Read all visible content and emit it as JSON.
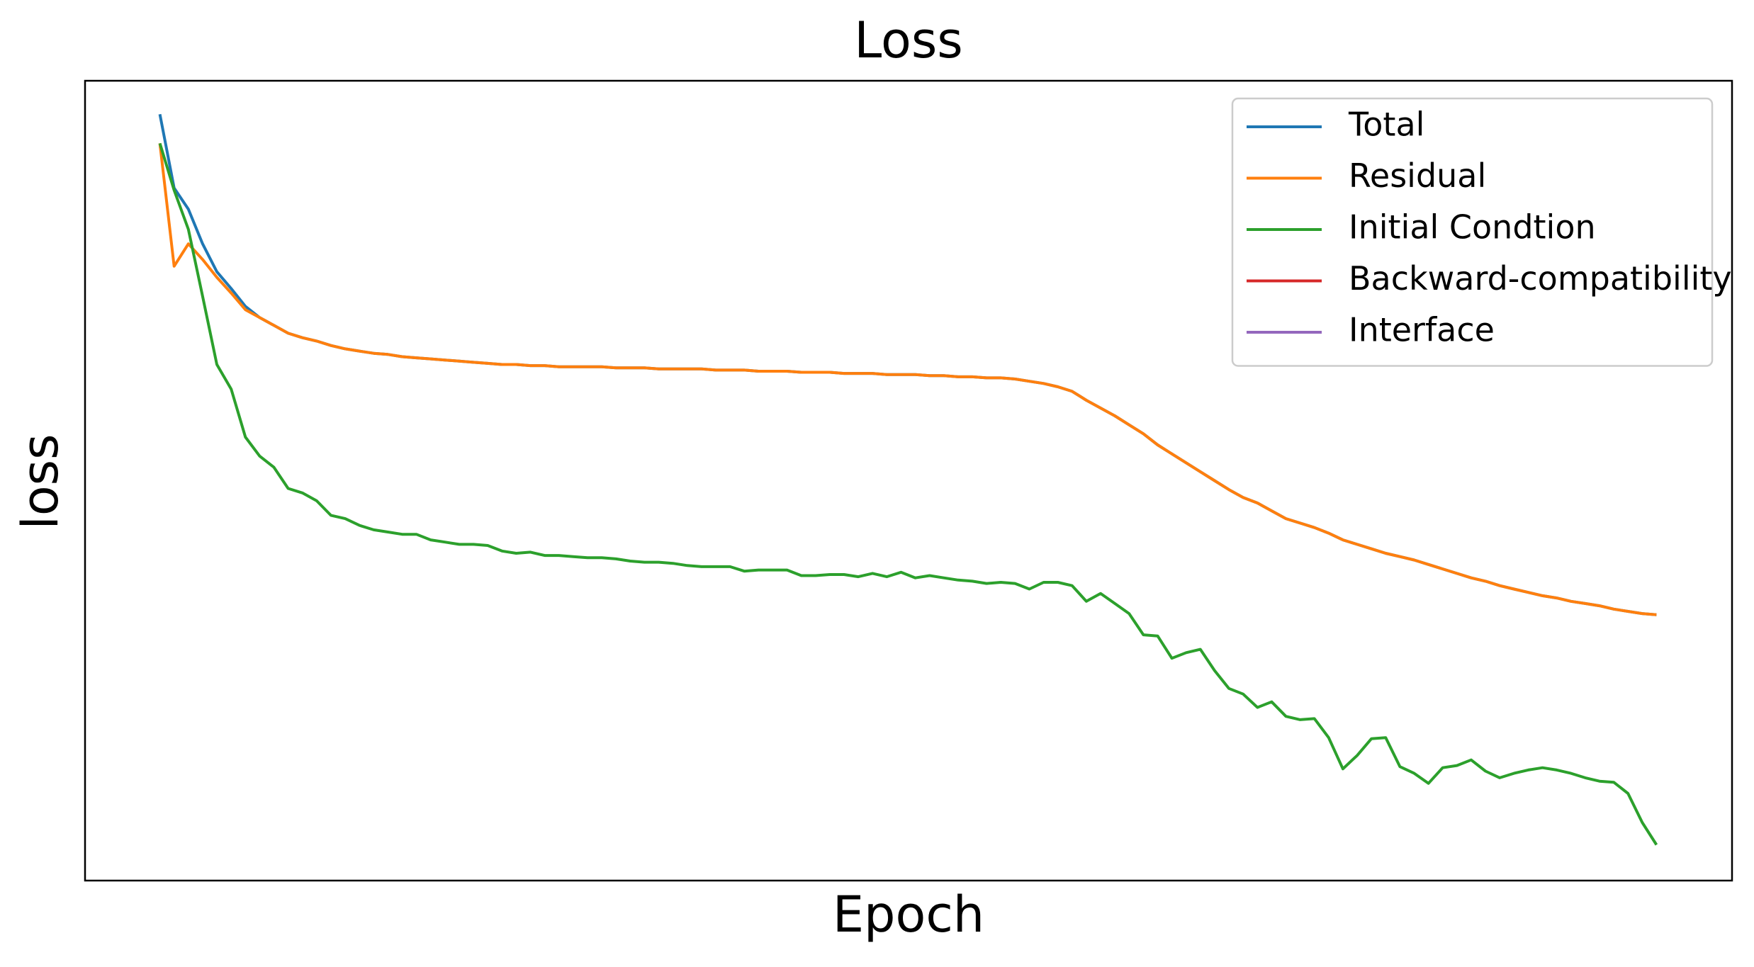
{
  "chart_data": {
    "type": "line",
    "title": "Loss",
    "x_label": "Epoch",
    "y_label": "loss",
    "x": [
      0,
      1,
      2,
      3,
      4,
      5,
      6,
      7,
      8,
      9,
      10,
      11,
      12,
      13,
      14,
      15,
      16,
      17,
      18,
      19,
      20,
      21,
      22,
      23,
      24,
      25,
      26,
      27,
      28,
      29,
      30,
      31,
      32,
      33,
      34,
      35,
      36,
      37,
      38,
      39,
      40,
      41,
      42,
      43,
      44,
      45,
      46,
      47,
      48,
      49,
      50,
      51,
      52,
      53,
      54,
      55,
      56,
      57,
      58,
      59,
      60,
      61,
      62,
      63,
      64,
      65,
      66,
      67,
      68,
      69,
      70,
      71,
      72,
      73,
      74,
      75,
      76,
      77,
      78,
      79,
      80,
      81,
      82,
      83,
      84,
      85,
      86,
      87,
      88,
      89,
      90,
      91,
      92,
      93,
      94,
      95,
      96,
      97,
      98,
      99,
      100,
      101,
      102,
      103,
      104,
      105
    ],
    "xlim": [
      -5.25,
      110.3
    ],
    "ylim": [
      0,
      716
    ],
    "legend": "upper right",
    "series": [
      {
        "name": "Total",
        "color": "#1f77b4",
        "values": [
          686,
          620,
          601,
          570,
          545,
          530,
          514,
          504,
          497,
          490,
          486,
          483,
          479,
          476,
          474,
          472,
          471,
          469,
          468,
          467,
          466,
          465,
          464,
          463,
          462,
          462,
          461,
          461,
          460,
          460,
          460,
          460,
          459,
          459,
          459,
          458,
          458,
          458,
          458,
          457,
          457,
          457,
          456,
          456,
          456,
          455,
          455,
          455,
          454,
          454,
          454,
          453,
          453,
          453,
          452,
          452,
          451,
          451,
          450,
          450,
          449,
          447,
          445,
          442,
          438,
          430,
          423,
          416,
          408,
          400,
          390,
          382,
          374,
          366,
          358,
          350,
          343,
          338,
          331,
          324,
          320,
          316,
          311,
          305,
          301,
          297,
          293,
          290,
          287,
          283,
          279,
          275,
          271,
          268,
          264,
          261,
          258,
          255,
          253,
          250,
          248,
          246,
          243,
          241,
          239,
          238
        ]
      },
      {
        "name": "Residual",
        "color": "#ff7f0e",
        "values": [
          660,
          550,
          570,
          556,
          540,
          526,
          511,
          504,
          497,
          490,
          486,
          483,
          479,
          476,
          474,
          472,
          471,
          469,
          468,
          467,
          466,
          465,
          464,
          463,
          462,
          462,
          461,
          461,
          460,
          460,
          460,
          460,
          459,
          459,
          459,
          458,
          458,
          458,
          458,
          457,
          457,
          457,
          456,
          456,
          456,
          455,
          455,
          455,
          454,
          454,
          454,
          453,
          453,
          453,
          452,
          452,
          451,
          451,
          450,
          450,
          449,
          447,
          445,
          442,
          438,
          430,
          423,
          416,
          408,
          400,
          390,
          382,
          374,
          366,
          358,
          350,
          343,
          338,
          331,
          324,
          320,
          316,
          311,
          305,
          301,
          297,
          293,
          290,
          287,
          283,
          279,
          275,
          271,
          268,
          264,
          261,
          258,
          255,
          253,
          250,
          248,
          246,
          243,
          241,
          239,
          238
        ]
      },
      {
        "name": "Initial Condtion",
        "color": "#2ca02c",
        "values": [
          660,
          618,
          583,
          523,
          462,
          440,
          397,
          380,
          370,
          351,
          347,
          340,
          327,
          324,
          318,
          314,
          312,
          310,
          310,
          305,
          303,
          301,
          301,
          300,
          295,
          293,
          294,
          291,
          291,
          290,
          289,
          289,
          288,
          286,
          285,
          285,
          284,
          282,
          281,
          281,
          281,
          277,
          278,
          278,
          278,
          273,
          273,
          274,
          274,
          272,
          275,
          272,
          276,
          271,
          273,
          271,
          269,
          268,
          266,
          267,
          266,
          261,
          267,
          267,
          264,
          250,
          257,
          248,
          239,
          220,
          219,
          199,
          204,
          207,
          188,
          172,
          167,
          155,
          160,
          147,
          144,
          145,
          128,
          100,
          112,
          127,
          128,
          102,
          96,
          87,
          101,
          103,
          108,
          98,
          92,
          96,
          99,
          101,
          99,
          96,
          92,
          89,
          88,
          78,
          52,
          32
        ]
      },
      {
        "name": "Backward-compatibility",
        "color": "#d62728",
        "values": [
          null,
          null,
          null,
          null,
          null,
          null,
          null,
          null,
          null,
          null,
          null,
          null,
          null,
          null,
          null,
          null,
          null,
          null,
          null,
          null,
          null,
          null,
          null,
          null,
          null,
          null,
          null,
          null,
          null,
          null,
          null,
          null,
          null,
          null,
          null,
          null,
          null,
          null,
          null,
          null,
          null,
          null,
          null,
          null,
          null,
          null,
          null,
          null,
          null,
          null,
          null,
          null,
          null,
          null,
          null,
          null,
          null,
          null,
          null,
          null,
          null,
          null,
          null,
          null,
          null,
          null,
          null,
          null,
          null,
          null,
          null,
          null,
          null,
          null,
          null,
          null,
          null,
          null,
          null,
          null,
          null,
          null,
          null,
          null,
          null,
          null,
          null,
          null,
          null,
          null,
          null,
          null,
          null,
          null,
          null,
          null,
          null,
          null,
          null,
          null,
          null,
          null,
          null,
          null,
          null,
          null
        ]
      },
      {
        "name": "Interface",
        "color": "#9467bd",
        "values": [
          null,
          null,
          null,
          null,
          null,
          null,
          null,
          null,
          null,
          null,
          null,
          null,
          null,
          null,
          null,
          null,
          null,
          null,
          null,
          null,
          null,
          null,
          null,
          null,
          null,
          null,
          null,
          null,
          null,
          null,
          null,
          null,
          null,
          null,
          null,
          null,
          null,
          null,
          null,
          null,
          null,
          null,
          null,
          null,
          null,
          null,
          null,
          null,
          null,
          null,
          null,
          null,
          null,
          null,
          null,
          null,
          null,
          null,
          null,
          null,
          null,
          null,
          null,
          null,
          null,
          null,
          null,
          null,
          null,
          null,
          null,
          null,
          null,
          null,
          null,
          null,
          null,
          null,
          null,
          null,
          null,
          null,
          null,
          null,
          null,
          null,
          null,
          null,
          null,
          null,
          null,
          null,
          null,
          null,
          null,
          null,
          null,
          null,
          null,
          null,
          null,
          null,
          null,
          null,
          null,
          null
        ]
      }
    ]
  }
}
